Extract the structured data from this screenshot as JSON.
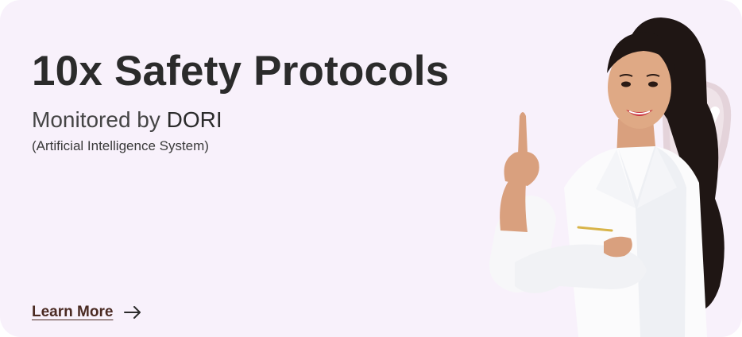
{
  "banner": {
    "headline": "10x Safety Protocols",
    "subline_prefix": "Monitored by",
    "subline_brand": "DORI",
    "note": "(Artificial Intelligence System)"
  },
  "cta": {
    "label": "Learn More",
    "icon": "arrow-right-icon"
  },
  "illustration": {
    "icon": "shield-check-icon",
    "subject": "person-photo"
  },
  "colors": {
    "background": "#f8f1fb",
    "headline": "#2b2b2b",
    "cta": "#4a2a22",
    "coat": "#ffffff",
    "shield": "#e8d9df"
  }
}
